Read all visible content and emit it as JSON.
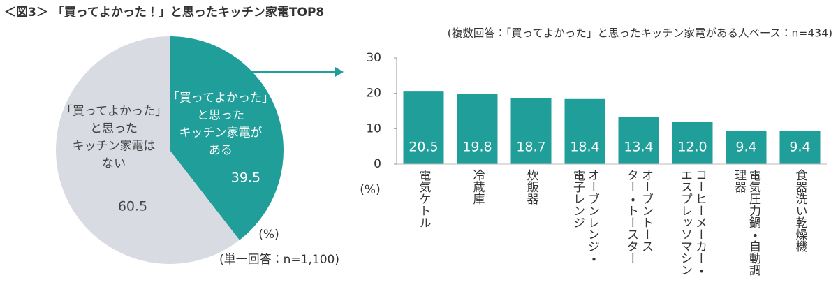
{
  "title": "＜図3＞ 「買ってよかった！」と思ったキッチン家電TOP8",
  "chart_data": [
    {
      "type": "pie",
      "categories": [
        "「買ってよかった」\nと思った\nキッチン家電が\nある",
        "「買ってよかった」\nと思った\nキッチン家電は\nない"
      ],
      "values": [
        39.5,
        60.5
      ],
      "colors": [
        "#1f9e9a",
        "#d8dbe2"
      ],
      "unit": "(%)",
      "note": "(単一回答：n=1,100)"
    },
    {
      "type": "bar",
      "note": "(複数回答：「買ってよかった」と思ったキッチン家電がある人ベース：n=434)",
      "ylabel": "(%)",
      "categories": [
        "電気ケトル",
        "冷蔵庫",
        "炊飯器",
        "オーブンレンジ・\n電子レンジ",
        "オーブントース\nター・トースター",
        "コーヒーメーカー・\nエスプレッソマシン",
        "電気圧力鍋・自動調\n理器",
        "食器洗い乾燥機"
      ],
      "values": [
        20.5,
        19.8,
        18.7,
        18.4,
        13.4,
        12.0,
        9.4,
        9.4
      ],
      "value_labels": [
        "20.5",
        "19.8",
        "18.7",
        "18.4",
        "13.4",
        "12.0",
        "9.4",
        "9.4"
      ],
      "color": "#1f9e9a",
      "ylim": [
        0,
        30
      ],
      "yticks": [
        0,
        10,
        20,
        30
      ]
    }
  ]
}
